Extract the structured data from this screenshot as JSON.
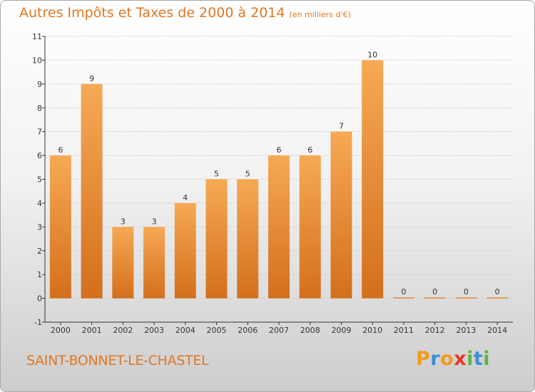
{
  "header": {
    "title": "Autres Impôts et Taxes de 2000 à 2014",
    "unit": "(en milliers d'€)"
  },
  "footer": {
    "commune": "SAINT-BONNET-LE-CHASTEL",
    "logo_text": "Proxiti",
    "logo_letter_colors": [
      "#f29a1e",
      "#3b8fd6",
      "#f29a1e",
      "#e8362b",
      "#5cb53a",
      "#3b8fd6",
      "#5cb53a"
    ]
  },
  "colors": {
    "bar_light": "#f6a954",
    "bar_dark": "#d46f1c",
    "title": "#e07722",
    "grid": "#cccccc"
  },
  "chart_data": {
    "type": "bar",
    "title": "Autres Impôts et Taxes de 2000 à 2014",
    "subtitle": "(en milliers d'€)",
    "xlabel": "",
    "ylabel": "",
    "categories": [
      "2000",
      "2001",
      "2002",
      "2003",
      "2004",
      "2005",
      "2006",
      "2007",
      "2008",
      "2009",
      "2010",
      "2011",
      "2012",
      "2013",
      "2014"
    ],
    "values": [
      6,
      9,
      3,
      3,
      4,
      5,
      5,
      6,
      6,
      7,
      10,
      0,
      0,
      0,
      0
    ],
    "data_labels": [
      "6",
      "9",
      "3",
      "3",
      "4",
      "5",
      "5",
      "6",
      "6",
      "7",
      "10",
      "0",
      "0",
      "0",
      "0"
    ],
    "ylim": [
      -1,
      11
    ],
    "yticks": [
      -1,
      0,
      1,
      2,
      3,
      4,
      5,
      6,
      7,
      8,
      9,
      10,
      11
    ],
    "ytick_labels": [
      "-1",
      "0",
      "1",
      "2",
      "3",
      "4",
      "5",
      "6",
      "7",
      "8",
      "9",
      "10",
      "11"
    ],
    "grid": "horizontal",
    "legend": "none"
  }
}
